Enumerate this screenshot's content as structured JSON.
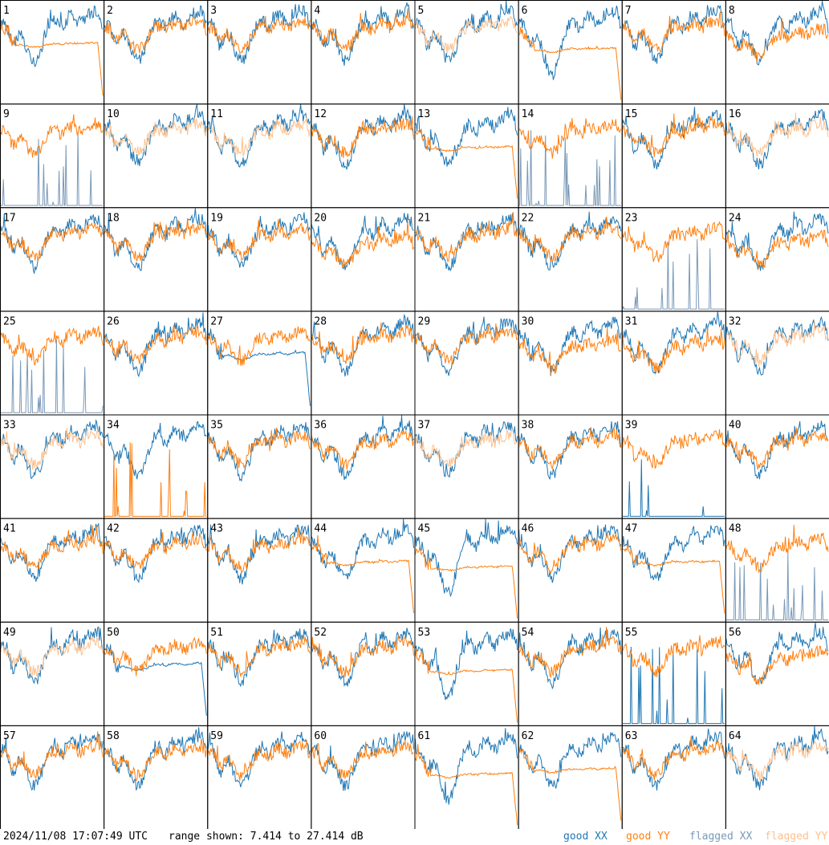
{
  "chart_data": {
    "type": "line",
    "panel_labels": [
      "1",
      "2",
      "3",
      "4",
      "5",
      "6",
      "7",
      "8",
      "9",
      "10",
      "11",
      "12",
      "13",
      "14",
      "15",
      "16",
      "17",
      "18",
      "19",
      "20",
      "21",
      "22",
      "23",
      "24",
      "25",
      "26",
      "27",
      "28",
      "29",
      "30",
      "31",
      "32",
      "33",
      "34",
      "35",
      "36",
      "37",
      "38",
      "39",
      "40",
      "41",
      "42",
      "43",
      "44",
      "45",
      "46",
      "47",
      "48",
      "49",
      "50",
      "51",
      "52",
      "53",
      "54",
      "55",
      "56",
      "57",
      "58",
      "59",
      "60",
      "61",
      "62",
      "63",
      "64"
    ],
    "ylim": [
      7.414,
      27.414
    ],
    "yunit": "dB",
    "grid": false,
    "series_keys": [
      "good XX",
      "good YY",
      "flagged XX",
      "flagged YY"
    ],
    "panel_state": {
      "normal": [
        2,
        3,
        4,
        7,
        12,
        15,
        17,
        18,
        19,
        21,
        22,
        26,
        28,
        29,
        35,
        36,
        38,
        40,
        41,
        42,
        43,
        46,
        51,
        52,
        54,
        57,
        58,
        59,
        60,
        63
      ],
      "xx_flagged": [
        9,
        14,
        23,
        25,
        48
      ],
      "yy_flagged": [
        5,
        10,
        11,
        16,
        32,
        33,
        37,
        49,
        64
      ],
      "yy_dropoff": [
        1,
        13,
        44,
        47,
        62
      ],
      "xx_dropoff": [
        27,
        50
      ],
      "xx_spiky": [
        39,
        55
      ],
      "yy_spiky": [
        34
      ],
      "xx_bumpy": [
        6,
        45,
        53,
        61
      ],
      "yy_lower": [
        8,
        20,
        24,
        30,
        31,
        56
      ]
    }
  },
  "footer": {
    "timestamp": "2024/11/08 17:07:49 UTC",
    "range": "range shown: 7.414 to 27.414 dB"
  },
  "legend": [
    {
      "label": "good XX",
      "color": "#1f77b4"
    },
    {
      "label": "good YY",
      "color": "#ff7f0e"
    },
    {
      "label": "flagged XX",
      "color": "#7a99b8"
    },
    {
      "label": "flagged YY",
      "color": "#fdc08d"
    }
  ]
}
